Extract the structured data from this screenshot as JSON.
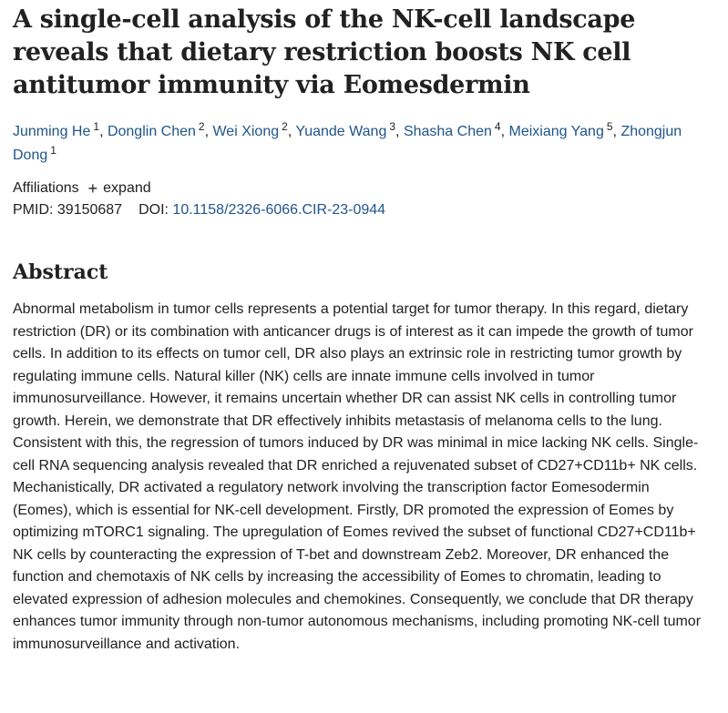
{
  "article": {
    "title": "A single-cell analysis of the NK-cell landscape reveals that dietary restriction boosts NK cell antitumor immunity via Eomesdermin",
    "authors": [
      {
        "name": "Junming He",
        "aff": "1"
      },
      {
        "name": "Donglin Chen",
        "aff": "2"
      },
      {
        "name": "Wei Xiong",
        "aff": "2"
      },
      {
        "name": "Yuande Wang",
        "aff": "3"
      },
      {
        "name": "Shasha Chen",
        "aff": "4"
      },
      {
        "name": "Meixiang Yang",
        "aff": "5"
      },
      {
        "name": "Zhongjun Dong",
        "aff": "1"
      }
    ],
    "author_separator": ", ",
    "affiliations_label": "Affiliations",
    "expand_label": "expand",
    "pmid_label": "PMID: 39150687",
    "doi_label": "DOI:",
    "doi_value": "10.1158/2326-6066.CIR-23-0944",
    "abstract_heading": "Abstract",
    "abstract_text": "Abnormal metabolism in tumor cells represents a potential target for tumor therapy. In this regard, dietary restriction (DR) or its combination with anticancer drugs is of interest as it can impede the growth of tumor cells. In addition to its effects on tumor cell, DR also plays an extrinsic role in restricting tumor growth by regulating immune cells. Natural killer (NK) cells are innate immune cells involved in tumor immunosurveillance. However, it remains uncertain whether DR can assist NK cells in controlling tumor growth. Herein, we demonstrate that DR effectively inhibits metastasis of melanoma cells to the lung. Consistent with this, the regression of tumors induced by DR was minimal in mice lacking NK cells. Single-cell RNA sequencing analysis revealed that DR enriched a rejuvenated subset of CD27+CD11b+ NK cells. Mechanistically, DR activated a regulatory network involving the transcription factor Eomesodermin (Eomes), which is essential for NK-cell development. Firstly, DR promoted the expression of Eomes by optimizing mTORC1 signaling. The upregulation of Eomes revived the subset of functional CD27+CD11b+ NK cells by counteracting the expression of T-bet and downstream Zeb2. Moreover, DR enhanced the function and chemotaxis of NK cells by increasing the accessibility of Eomes to chromatin, leading to elevated expression of adhesion molecules and chemokines. Consequently, we conclude that DR therapy enhances tumor immunity through non-tumor autonomous mechanisms, including promoting NK-cell tumor immunosurveillance and activation."
  },
  "icons": {
    "expand": "plus-icon"
  },
  "colors": {
    "link": "#20558a",
    "text": "#212121"
  }
}
